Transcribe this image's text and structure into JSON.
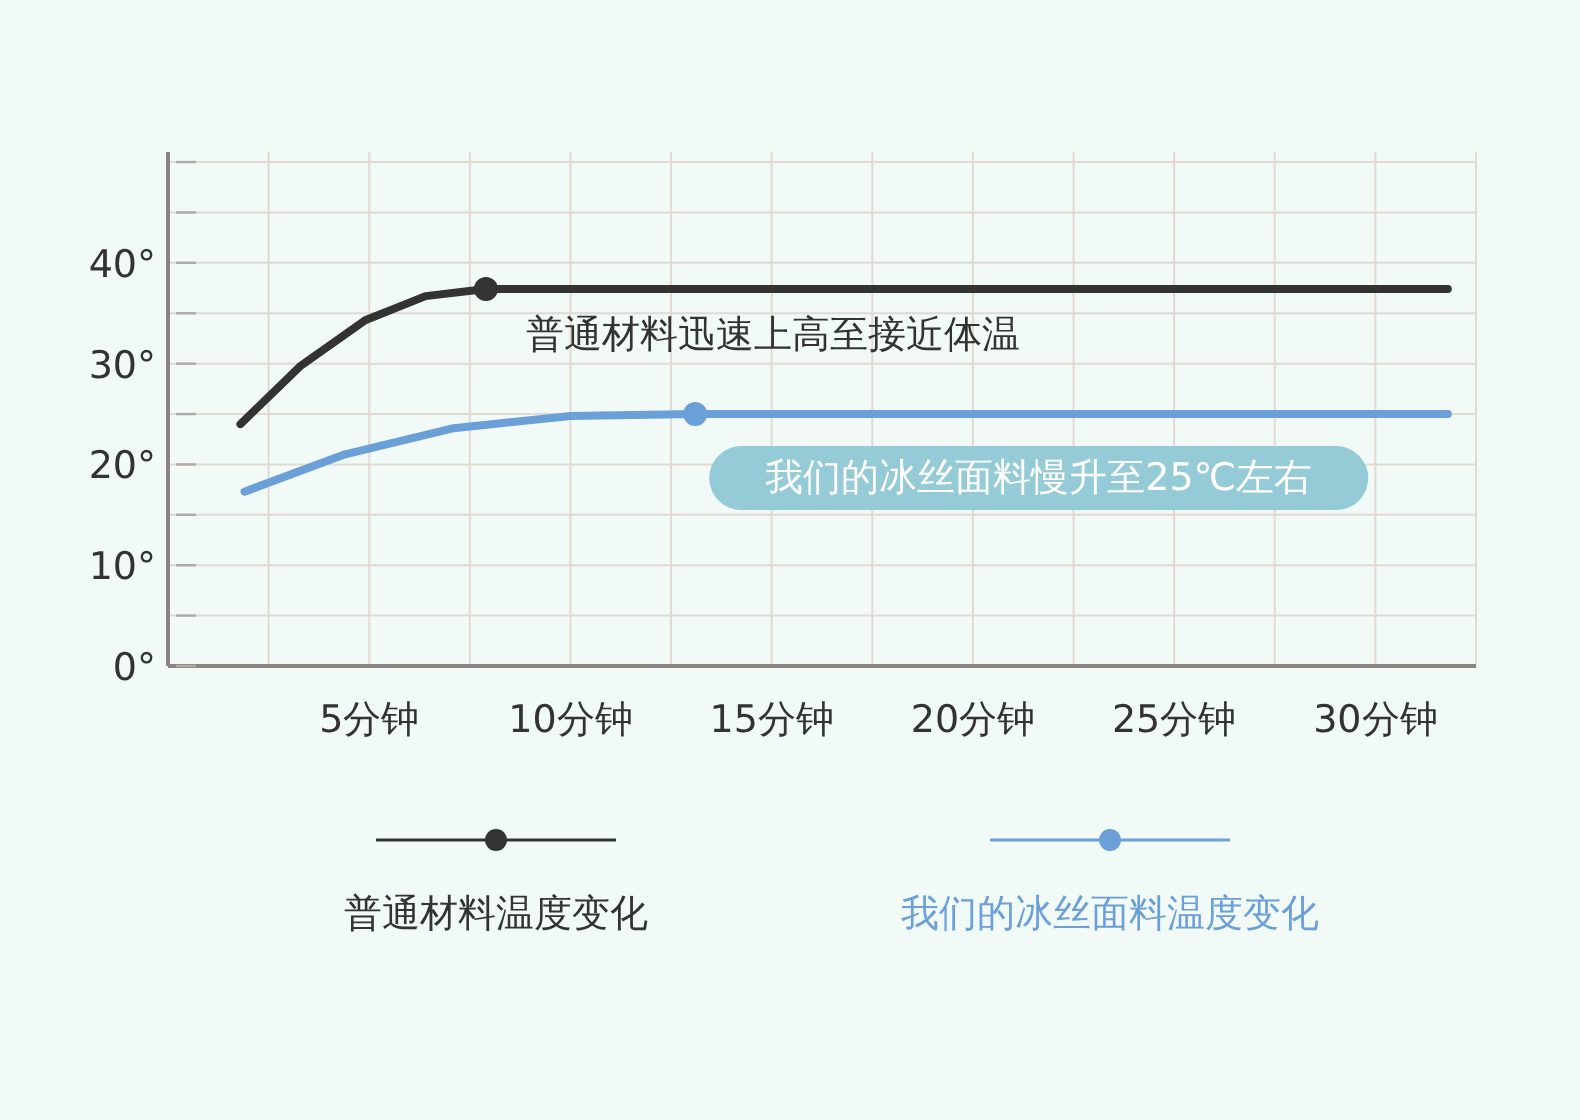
{
  "chart_data": {
    "type": "line",
    "x": [
      1.8,
      3.3,
      4.9,
      6.4,
      7.9,
      31.8
    ],
    "xlim": [
      0,
      32.5
    ],
    "xticks": [
      {
        "value": 2.5,
        "label": null
      },
      {
        "value": 5,
        "label": "5分钟"
      },
      {
        "value": 7.5,
        "label": null
      },
      {
        "value": 10,
        "label": "10分钟"
      },
      {
        "value": 12.5,
        "label": null
      },
      {
        "value": 15,
        "label": "15分钟"
      },
      {
        "value": 17.5,
        "label": null
      },
      {
        "value": 20,
        "label": "20分钟"
      },
      {
        "value": 22.5,
        "label": null
      },
      {
        "value": 25,
        "label": "25分钟"
      },
      {
        "value": 27.5,
        "label": null
      },
      {
        "value": 30,
        "label": "30分钟"
      },
      {
        "value": 32.5,
        "label": null
      }
    ],
    "ylim": [
      0,
      51
    ],
    "yticks": [
      {
        "value": 0,
        "label": "0°"
      },
      {
        "value": 5,
        "label": null
      },
      {
        "value": 10,
        "label": "10°"
      },
      {
        "value": 15,
        "label": null
      },
      {
        "value": 20,
        "label": "20°"
      },
      {
        "value": 25,
        "label": null
      },
      {
        "value": 30,
        "label": "30°"
      },
      {
        "value": 35,
        "label": null
      },
      {
        "value": 40,
        "label": "40°"
      },
      {
        "value": 45,
        "label": null
      },
      {
        "value": 50,
        "label": null
      }
    ],
    "grid": true,
    "legend": "bottom",
    "series": [
      {
        "name": "普通材料温度变化",
        "color": "#333333",
        "values": [
          24.0,
          29.8,
          34.3,
          36.7,
          37.4,
          37.4
        ]
      },
      {
        "name": "我们的冰丝面料温度变化",
        "color": "#6a9fd8",
        "x": [
          1.9,
          4.4,
          7.1,
          10.0,
          13.1,
          31.8
        ],
        "values": [
          17.3,
          21.0,
          23.6,
          24.8,
          25.0,
          25.0
        ]
      },
      {
        "type": "scatter",
        "color": "#333333",
        "x": [
          7.9
        ],
        "values": [
          37.4
        ],
        "marker": "circle"
      },
      {
        "type": "scatter",
        "color": "#6a9fd8",
        "x": [
          13.1
        ],
        "values": [
          25.0
        ],
        "marker": "circle"
      }
    ],
    "annotations": [
      {
        "text": "普通材料迅速上高至接近体温",
        "x": 7.9,
        "y": 37.4
      },
      {
        "text": "我们的冰丝面料慢升至25℃左右",
        "x": 13.1,
        "y": 25.0
      }
    ]
  }
}
